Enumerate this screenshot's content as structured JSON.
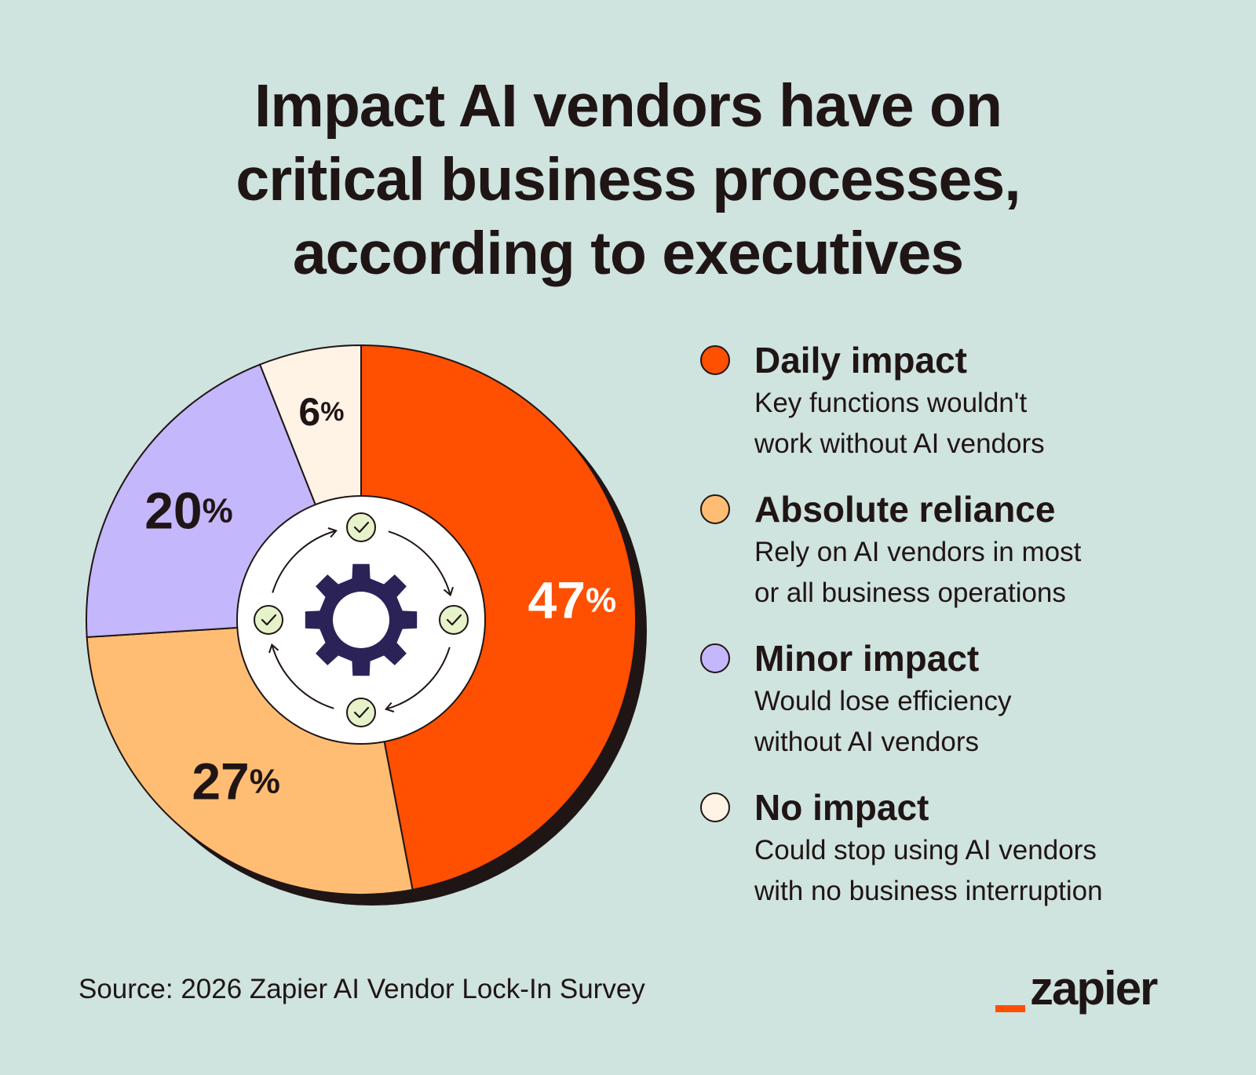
{
  "title_lines": [
    "Impact AI vendors have on",
    "critical business processes,",
    "according to executives"
  ],
  "chart_data": {
    "type": "pie",
    "categories": [
      "Daily impact",
      "Absolute reliance",
      "Minor impact",
      "No impact"
    ],
    "values": [
      47,
      27,
      20,
      6
    ],
    "labels": [
      "47%",
      "27%",
      "20%",
      "6%"
    ],
    "colors": [
      "#ff4f00",
      "#ffbd73",
      "#c4b7fc",
      "#fff3e6"
    ],
    "label_colors": [
      "#ffffff",
      "#201515",
      "#201515",
      "#201515"
    ],
    "legend_placement": "right",
    "style": "donut"
  },
  "legend": [
    {
      "title": "Daily impact",
      "desc": [
        "Key functions wouldn't",
        "work without AI vendors"
      ],
      "color": "#ff4f00"
    },
    {
      "title": "Absolute reliance",
      "desc": [
        "Rely on AI vendors in most",
        "or all business operations"
      ],
      "color": "#ffbd73"
    },
    {
      "title": "Minor impact",
      "desc": [
        "Would lose efficiency",
        "without AI vendors"
      ],
      "color": "#c4b7fc"
    },
    {
      "title": "No impact",
      "desc": [
        "Could stop using AI vendors",
        "with no business interruption"
      ],
      "color": "#fff3e6"
    }
  ],
  "source": "Source: 2026 Zapier AI Vendor Lock-In Survey",
  "logo": "zapier",
  "center_icons": [
    "gear-icon",
    "check-circle-icon",
    "cycle-arrow-icon"
  ]
}
